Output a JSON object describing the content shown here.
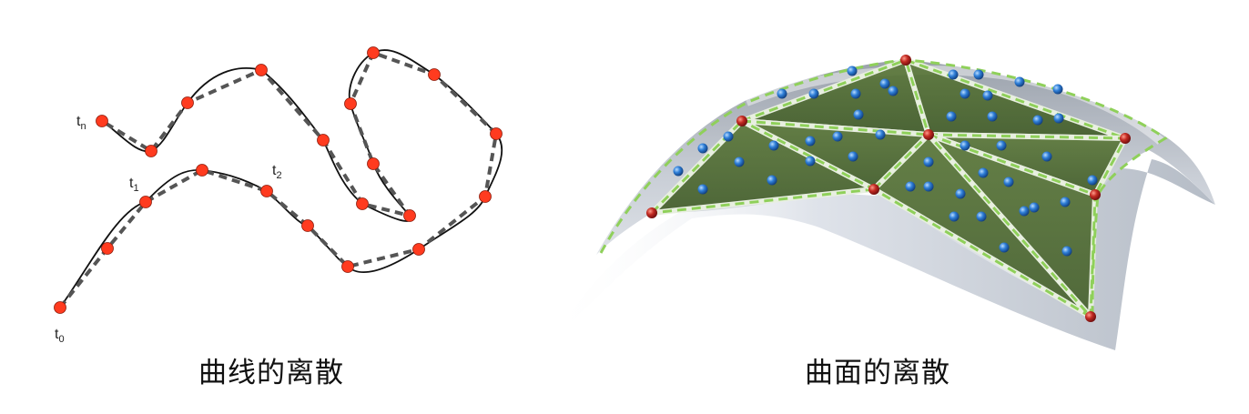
{
  "panels": {
    "curve": {
      "caption": "曲线的离散",
      "labels": {
        "t0": {
          "base": "t",
          "sub": "0"
        },
        "t1": {
          "base": "t",
          "sub": "1"
        },
        "t2": {
          "base": "t",
          "sub": "2"
        },
        "tn": {
          "base": "t",
          "sub": "n"
        }
      }
    },
    "surface": {
      "caption": "曲面的离散"
    }
  },
  "colors": {
    "sample_point": "#ff3b1f",
    "curve_line": "#111111",
    "polyline": "#555555",
    "triangle_fill": "#4f6b2f",
    "triangle_edge": "#8fd05a",
    "vertex_point": "#b02020",
    "interior_point": "#2f7fd8",
    "surface": "#c9ced6"
  }
}
